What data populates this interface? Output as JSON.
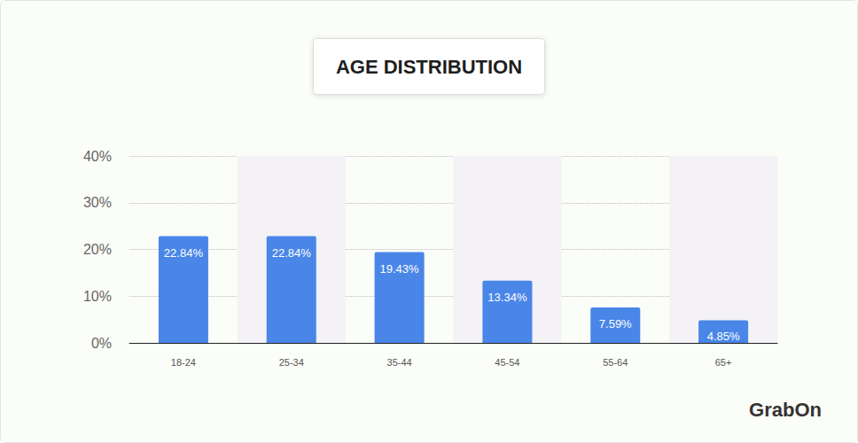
{
  "chart_data": {
    "type": "bar",
    "title": "AGE DISTRIBUTION",
    "categories": [
      "18-24",
      "25-34",
      "35-44",
      "45-54",
      "55-64",
      "65+"
    ],
    "values": [
      22.84,
      22.84,
      19.43,
      13.34,
      7.59,
      4.85
    ],
    "value_labels": [
      "22.84%",
      "22.84%",
      "19.43%",
      "13.34%",
      "7.59%",
      "4.85%"
    ],
    "data_labels": true,
    "color": "#4a86e8",
    "ylim": [
      0,
      40
    ],
    "yticks": [
      {
        "value": 0,
        "label": "0%"
      },
      {
        "value": 10,
        "label": "10%"
      },
      {
        "value": 20,
        "label": "20%"
      },
      {
        "value": 30,
        "label": "30%"
      },
      {
        "value": 40,
        "label": "40%"
      }
    ],
    "grid": true,
    "annotation": "GrabOn"
  }
}
